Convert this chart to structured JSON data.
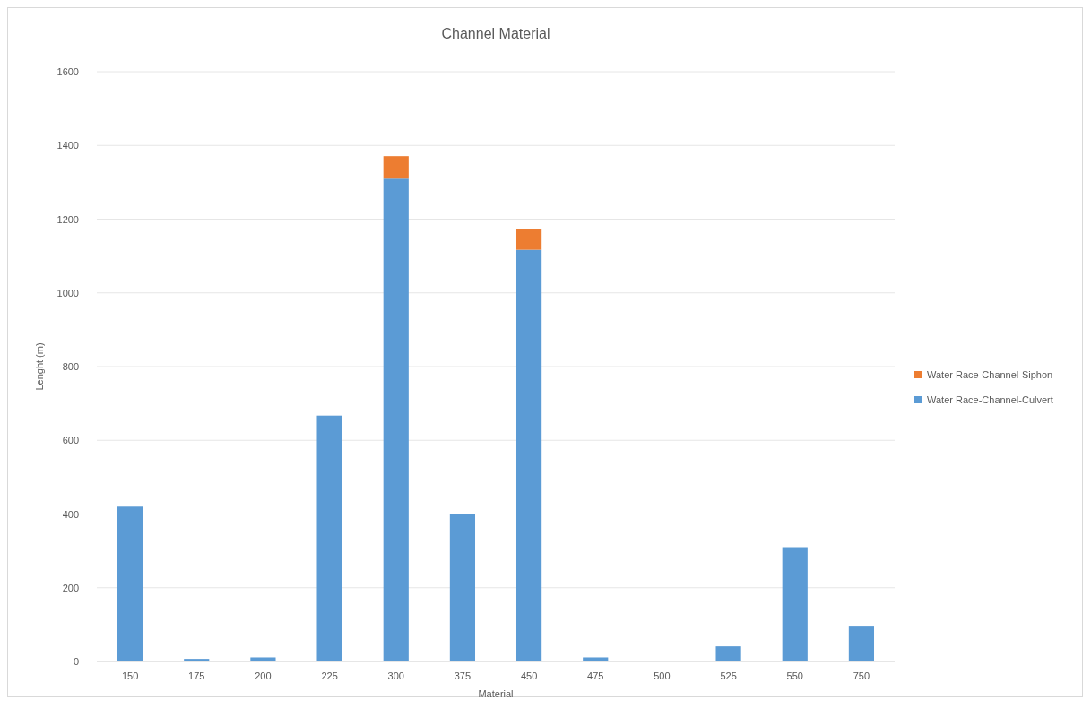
{
  "chart_data": {
    "type": "bar",
    "title": "Channel Material",
    "xlabel": "Material",
    "ylabel": "Lenght (m)",
    "categories": [
      "150",
      "175",
      "200",
      "225",
      "300",
      "375",
      "450",
      "475",
      "500",
      "525",
      "550",
      "750"
    ],
    "stacked": true,
    "series": [
      {
        "name": "Water Race-Channel-Culvert",
        "color": "#5b9bd5",
        "values": [
          420,
          7,
          11,
          667,
          1310,
          400,
          1117,
          11,
          2,
          41,
          310,
          97
        ]
      },
      {
        "name": "Water Race-Channel-Siphon",
        "color": "#ed7d31",
        "values": [
          0,
          0,
          0,
          0,
          61,
          0,
          55,
          0,
          0,
          0,
          0,
          0
        ]
      }
    ],
    "ylim": [
      0,
      1600
    ],
    "yticks": [
      0,
      200,
      400,
      600,
      800,
      1000,
      1200,
      1400,
      1600
    ],
    "grid": "y",
    "legend": "right"
  }
}
